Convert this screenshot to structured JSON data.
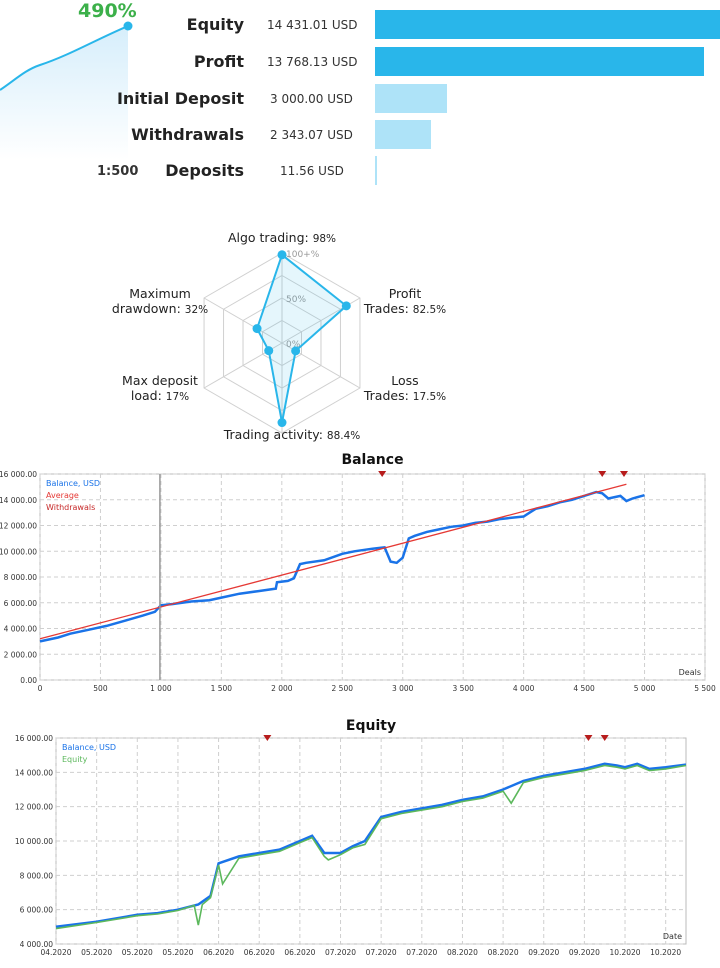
{
  "summary": {
    "growth_percent": "490%",
    "leverage": "1:500",
    "stats": [
      {
        "label": "Equity",
        "value": "14 431.01 USD",
        "amount": 14431.01,
        "color": "#29b6ea"
      },
      {
        "label": "Profit",
        "value": "13 768.13 USD",
        "amount": 13768.13,
        "color": "#29b6ea"
      },
      {
        "label": "Initial Deposit",
        "value": "3 000.00 USD",
        "amount": 3000.0,
        "color": "#aee3f8"
      },
      {
        "label": "Withdrawals",
        "value": "2 343.07 USD",
        "amount": 2343.07,
        "color": "#aee3f8"
      },
      {
        "label": "Deposits",
        "value": "11.56 USD",
        "amount": 11.56,
        "color": "#aee3f8"
      }
    ]
  },
  "chart_data": [
    {
      "type": "radar",
      "axes": [
        {
          "label_line1": "Algo trading:",
          "value_text": "98%",
          "value": 98
        },
        {
          "label_line1": "Profit",
          "label_line2": "Trades:",
          "value_text": "82.5%",
          "value": 82.5
        },
        {
          "label_line1": "Loss",
          "label_line2": "Trades:",
          "value_text": "17.5%",
          "value": 17.5
        },
        {
          "label_line1": "Trading activity:",
          "value_text": "88.4%",
          "value": 88.4
        },
        {
          "label_line1": "Max deposit",
          "label_line2": "load:",
          "value_text": "17%",
          "value": 17
        },
        {
          "label_line1": "Maximum",
          "label_line2": "drawdown:",
          "value_text": "32%",
          "value": 32
        }
      ],
      "scale_labels": [
        "0%",
        "50%",
        "100+%"
      ],
      "color": "#29b6ea"
    },
    {
      "type": "line",
      "title": "Balance",
      "xlabel": "Deals",
      "x_ticks": [
        0,
        500,
        1000,
        1500,
        2000,
        2500,
        3000,
        3500,
        4000,
        4500,
        5000,
        5500
      ],
      "x_tick_labels": [
        "0",
        "500",
        "1 000",
        "1 500",
        "2 000",
        "2 500",
        "3 000",
        "3 500",
        "4 000",
        "4 500",
        "5 000",
        "5 500"
      ],
      "y_ticks": [
        0,
        2000,
        4000,
        6000,
        8000,
        10000,
        12000,
        14000,
        16000
      ],
      "y_tick_labels": [
        "0.00",
        "2 000.00",
        "4 000.00",
        "6 000.00",
        "8 000.00",
        "10 000.00",
        "12 000.00",
        "14 000.00",
        "16 000.00"
      ],
      "xlim": [
        0,
        5500
      ],
      "ylim": [
        0,
        16000
      ],
      "legend": [
        "Balance, USD",
        "Average",
        "Withdrawals"
      ],
      "legend_colors": [
        "#1a73e8",
        "#e53935",
        "#c62828"
      ],
      "series": [
        {
          "name": "Balance, USD",
          "x": [
            0,
            150,
            250,
            400,
            550,
            700,
            850,
            950,
            1000,
            1100,
            1250,
            1400,
            1500,
            1650,
            1800,
            1950,
            1960,
            2050,
            2100,
            2150,
            2200,
            2350,
            2500,
            2600,
            2750,
            2850,
            2900,
            2950,
            3000,
            3050,
            3100,
            3200,
            3300,
            3400,
            3500,
            3600,
            3700,
            3800,
            3900,
            4000,
            4050,
            4100,
            4200,
            4300,
            4400,
            4500,
            4600,
            4650,
            4700,
            4800,
            4850,
            4900,
            5000
          ],
          "y": [
            3000,
            3300,
            3600,
            3900,
            4200,
            4600,
            5000,
            5300,
            5800,
            5900,
            6100,
            6200,
            6400,
            6700,
            6900,
            7100,
            7600,
            7700,
            7900,
            9000,
            9100,
            9300,
            9800,
            10000,
            10200,
            10300,
            9200,
            9100,
            9500,
            11000,
            11200,
            11500,
            11700,
            11900,
            12000,
            12200,
            12300,
            12500,
            12600,
            12700,
            13000,
            13300,
            13500,
            13800,
            14000,
            14300,
            14600,
            14500,
            14100,
            14300,
            13900,
            14100,
            14350
          ]
        },
        {
          "name": "Average",
          "x": [
            0,
            4850
          ],
          "y": [
            3200,
            15200
          ]
        }
      ],
      "withdrawal_markers_x": [
        2830,
        4650,
        4830
      ],
      "color_balance": "#1a73e8",
      "color_average": "#e53935"
    },
    {
      "type": "line",
      "title": "Equity",
      "xlabel": "Date",
      "x_tick_labels": [
        "04.2020",
        "05.2020",
        "05.2020",
        "05.2020",
        "06.2020",
        "06.2020",
        "06.2020",
        "07.2020",
        "07.2020",
        "07.2020",
        "08.2020",
        "08.2020",
        "09.2020",
        "09.2020",
        "10.2020",
        "10.2020"
      ],
      "y_ticks": [
        4000,
        6000,
        8000,
        10000,
        12000,
        14000,
        16000
      ],
      "y_tick_labels": [
        "4 000.00",
        "6 000.00",
        "8 000.00",
        "10 000.00",
        "12 000.00",
        "14 000.00",
        "16 000.00"
      ],
      "ylim": [
        4000,
        16000
      ],
      "legend": [
        "Balance, USD",
        "Equity"
      ],
      "legend_colors": [
        "#1a73e8",
        "#5cb85c"
      ],
      "series": [
        {
          "name": "Balance, USD",
          "x": [
            0,
            1,
            2,
            2.5,
            3,
            3.5,
            3.8,
            4,
            4.5,
            5,
            5.5,
            6,
            6.3,
            6.6,
            7,
            7.3,
            7.6,
            8,
            8.5,
            9,
            9.5,
            10,
            10.5,
            11,
            11.5,
            12,
            12.5,
            13,
            13.5,
            13.8,
            14,
            14.3,
            14.6,
            15,
            15.5
          ],
          "y": [
            5000,
            5300,
            5700,
            5800,
            6000,
            6300,
            6800,
            8700,
            9100,
            9300,
            9500,
            10000,
            10300,
            9300,
            9300,
            9700,
            10000,
            11400,
            11700,
            11900,
            12100,
            12400,
            12600,
            13000,
            13500,
            13800,
            14000,
            14200,
            14500,
            14400,
            14300,
            14500,
            14200,
            14300,
            14450
          ]
        },
        {
          "name": "Equity",
          "x": [
            0,
            1,
            2,
            2.5,
            3,
            3.4,
            3.5,
            3.6,
            3.8,
            4,
            4.1,
            4.5,
            5,
            5.5,
            6,
            6.3,
            6.6,
            6.7,
            7,
            7.3,
            7.6,
            8,
            8.5,
            9,
            9.5,
            10,
            10.5,
            11,
            11.2,
            11.5,
            12,
            12.5,
            13,
            13.5,
            13.8,
            14,
            14.3,
            14.6,
            15,
            15.5
          ],
          "y": [
            4900,
            5250,
            5650,
            5750,
            5950,
            6250,
            5100,
            6300,
            6700,
            8600,
            7500,
            9000,
            9200,
            9400,
            9900,
            10200,
            9100,
            8900,
            9200,
            9600,
            9800,
            11300,
            11600,
            11800,
            12000,
            12300,
            12500,
            12900,
            12200,
            13400,
            13700,
            13900,
            14100,
            14400,
            14300,
            14200,
            14400,
            14100,
            14200,
            14400
          ]
        }
      ],
      "withdrawal_markers_x": [
        5.2,
        13.1,
        13.5
      ],
      "color_balance": "#1a73e8",
      "color_equity": "#5cb85c"
    }
  ]
}
